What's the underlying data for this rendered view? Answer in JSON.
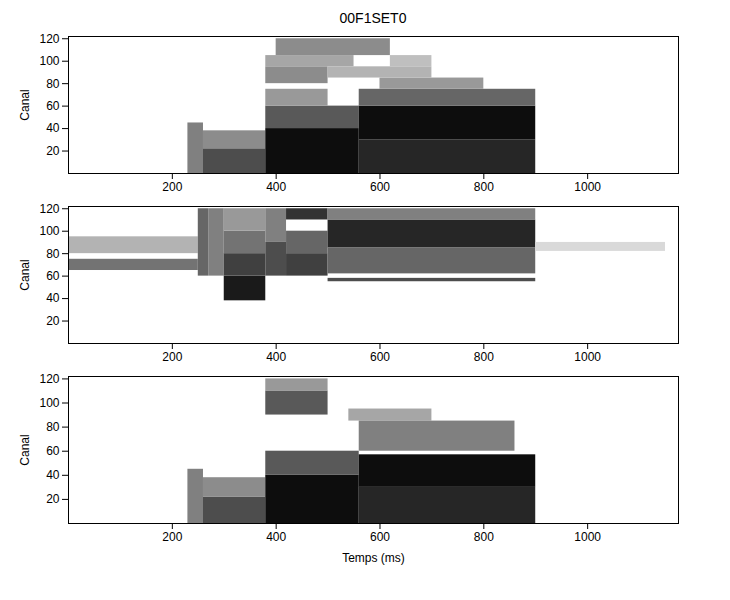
{
  "chart_data": [
    {
      "type": "heatmap",
      "title": "00F1SET0",
      "ylabel": "Canal",
      "xlim": [
        0,
        1175
      ],
      "ylim": [
        0,
        122
      ],
      "xticks": [
        200,
        400,
        600,
        800,
        1000
      ],
      "yticks": [
        20,
        40,
        60,
        80,
        100,
        120
      ],
      "zlim": [
        0,
        1
      ],
      "cells": [
        [
          230,
          260,
          0,
          45,
          0.5
        ],
        [
          260,
          380,
          0,
          22,
          0.7
        ],
        [
          260,
          380,
          22,
          38,
          0.45
        ],
        [
          380,
          560,
          0,
          40,
          0.95
        ],
        [
          380,
          560,
          40,
          60,
          0.65
        ],
        [
          380,
          500,
          60,
          75,
          0.4
        ],
        [
          560,
          900,
          0,
          30,
          0.85
        ],
        [
          560,
          900,
          30,
          60,
          0.95
        ],
        [
          560,
          900,
          60,
          75,
          0.6
        ],
        [
          600,
          800,
          75,
          85,
          0.4
        ],
        [
          380,
          500,
          80,
          95,
          0.45
        ],
        [
          380,
          550,
          95,
          105,
          0.35
        ],
        [
          400,
          620,
          105,
          120,
          0.45
        ],
        [
          500,
          700,
          85,
          95,
          0.3
        ],
        [
          620,
          700,
          95,
          105,
          0.25
        ]
      ]
    },
    {
      "type": "heatmap",
      "ylabel": "Canal",
      "xlim": [
        0,
        1175
      ],
      "ylim": [
        0,
        122
      ],
      "xticks": [
        200,
        400,
        600,
        800,
        1000
      ],
      "yticks": [
        20,
        40,
        60,
        80,
        100,
        120
      ],
      "zlim": [
        0,
        1
      ],
      "cells": [
        [
          0,
          250,
          80,
          95,
          0.3
        ],
        [
          0,
          250,
          65,
          75,
          0.55
        ],
        [
          250,
          270,
          60,
          120,
          0.6
        ],
        [
          270,
          300,
          60,
          120,
          0.5
        ],
        [
          300,
          380,
          38,
          60,
          0.9
        ],
        [
          300,
          380,
          60,
          80,
          0.75
        ],
        [
          300,
          380,
          80,
          100,
          0.55
        ],
        [
          300,
          380,
          100,
          120,
          0.4
        ],
        [
          380,
          420,
          60,
          90,
          0.7
        ],
        [
          380,
          420,
          90,
          120,
          0.5
        ],
        [
          420,
          500,
          60,
          80,
          0.75
        ],
        [
          420,
          500,
          80,
          100,
          0.6
        ],
        [
          420,
          500,
          110,
          120,
          0.8
        ],
        [
          500,
          900,
          85,
          110,
          0.85
        ],
        [
          500,
          900,
          62,
          85,
          0.6
        ],
        [
          500,
          900,
          110,
          120,
          0.5
        ],
        [
          500,
          900,
          55,
          58,
          0.7
        ],
        [
          900,
          1150,
          82,
          90,
          0.15
        ]
      ]
    },
    {
      "type": "heatmap",
      "ylabel": "Canal",
      "xlabel": "Temps (ms)",
      "xlim": [
        0,
        1175
      ],
      "ylim": [
        0,
        122
      ],
      "xticks": [
        200,
        400,
        600,
        800,
        1000
      ],
      "yticks": [
        20,
        40,
        60,
        80,
        100,
        120
      ],
      "zlim": [
        0,
        1
      ],
      "cells": [
        [
          230,
          260,
          0,
          45,
          0.5
        ],
        [
          260,
          380,
          0,
          22,
          0.7
        ],
        [
          260,
          380,
          22,
          38,
          0.45
        ],
        [
          380,
          560,
          0,
          40,
          0.95
        ],
        [
          380,
          560,
          40,
          60,
          0.65
        ],
        [
          560,
          900,
          0,
          30,
          0.85
        ],
        [
          560,
          900,
          30,
          57,
          0.95
        ],
        [
          380,
          500,
          90,
          110,
          0.65
        ],
        [
          380,
          500,
          110,
          120,
          0.4
        ],
        [
          540,
          700,
          85,
          95,
          0.35
        ],
        [
          560,
          860,
          60,
          85,
          0.5
        ]
      ]
    }
  ]
}
